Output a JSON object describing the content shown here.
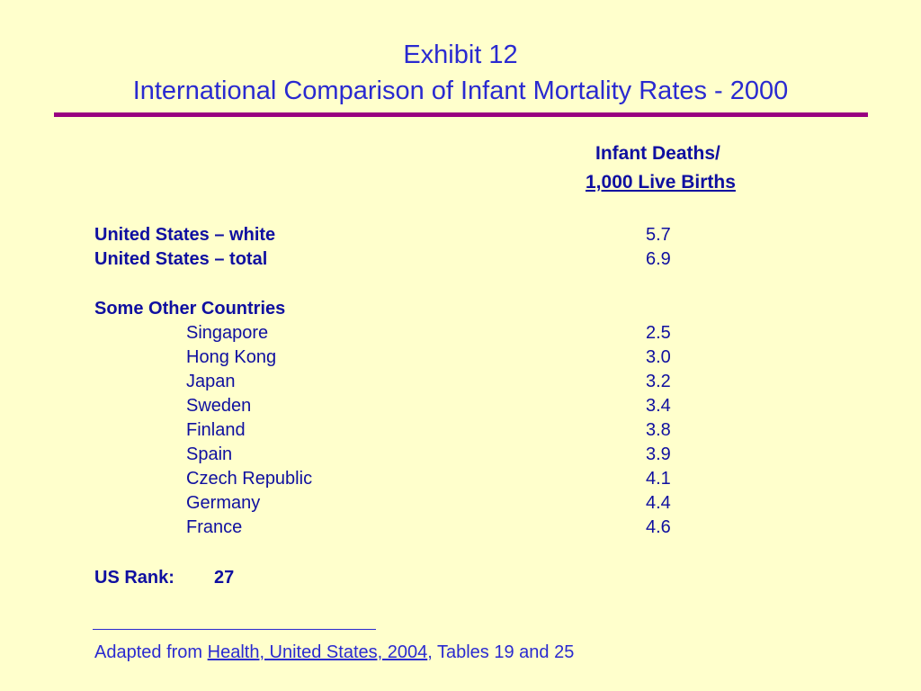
{
  "title": {
    "line1": "Exhibit 12",
    "line2": "International Comparison of Infant Mortality Rates - 2000"
  },
  "column_header": {
    "line1": "Infant Deaths/",
    "line2": "1,000 Live Births"
  },
  "us_rows": [
    {
      "label": "United States – white",
      "value": "5.7"
    },
    {
      "label": "United States – total",
      "value": "6.9"
    }
  ],
  "other_heading": "Some Other Countries",
  "countries": [
    {
      "label": "Singapore",
      "value": "2.5"
    },
    {
      "label": "Hong Kong",
      "value": "3.0"
    },
    {
      "label": "Japan",
      "value": "3.2"
    },
    {
      "label": "Sweden",
      "value": "3.4"
    },
    {
      "label": "Finland",
      "value": "3.8"
    },
    {
      "label": "Spain",
      "value": "3.9"
    },
    {
      "label": "Czech Republic",
      "value": "4.1"
    },
    {
      "label": "Germany",
      "value": "4.4"
    },
    {
      "label": "France",
      "value": "4.6"
    }
  ],
  "us_rank": {
    "label": "US Rank:",
    "value": "27"
  },
  "source": {
    "prefix": "Adapted from ",
    "title": "Health, United States, 2004",
    "suffix": ", Tables 19 and 25"
  },
  "colors": {
    "background": "#ffffcc",
    "text": "#0f0fa0",
    "title": "#2a2ad0",
    "rule": "#990080"
  }
}
